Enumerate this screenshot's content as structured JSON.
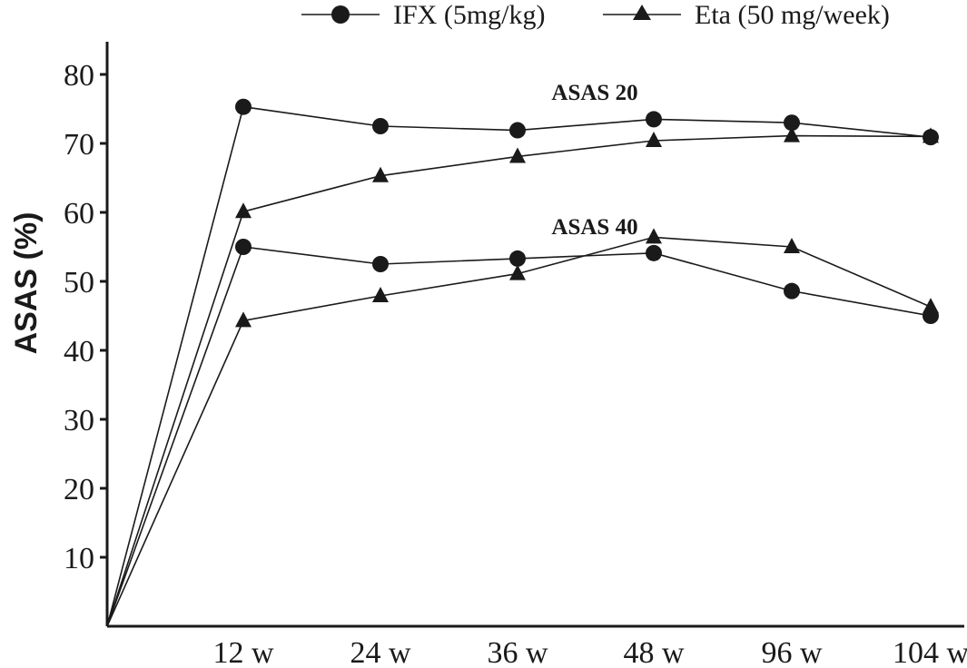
{
  "chart_data": {
    "type": "line",
    "x": [
      "0",
      "12 w",
      "24 w",
      "36 w",
      "48 w",
      "96 w",
      "104 w"
    ],
    "ylabel": "ASAS (%)",
    "ylim": [
      0,
      80
    ],
    "yticks": [
      10,
      20,
      30,
      40,
      50,
      60,
      70,
      80
    ],
    "xtick_labels": [
      "12 w",
      "24 w",
      "36 w",
      "48 w",
      "96 w",
      "104 w"
    ],
    "grid": false,
    "legend": {
      "placement": "top",
      "entries": [
        {
          "label": "IFX (5mg/kg)",
          "marker": "circle"
        },
        {
          "label": "Eta (50 mg/week)",
          "marker": "triangle"
        }
      ]
    },
    "series": [
      {
        "label": "IFX (5mg/kg)",
        "group": "ASAS 20",
        "marker": "circle",
        "values": [
          0,
          75.3,
          72.5,
          71.9,
          73.5,
          73.0,
          70.9
        ]
      },
      {
        "label": "Eta (50 mg/week)",
        "group": "ASAS 20",
        "marker": "triangle",
        "values": [
          0,
          60.1,
          65.3,
          68.1,
          70.4,
          71.1,
          71.0
        ]
      },
      {
        "label": "IFX (5mg/kg)",
        "group": "ASAS 40",
        "marker": "circle",
        "values": [
          0,
          55.0,
          52.5,
          53.3,
          54.1,
          48.6,
          45.0
        ]
      },
      {
        "label": "Eta (50 mg/week)",
        "group": "ASAS 40",
        "marker": "triangle",
        "values": [
          0,
          44.3,
          47.9,
          51.1,
          56.4,
          55.0,
          46.3
        ]
      }
    ],
    "annotations": [
      {
        "text": "ASAS 20",
        "x": "48 w",
        "y": 77.5
      },
      {
        "text": "ASAS 40",
        "x": "48 w",
        "y": 58.0
      }
    ]
  }
}
